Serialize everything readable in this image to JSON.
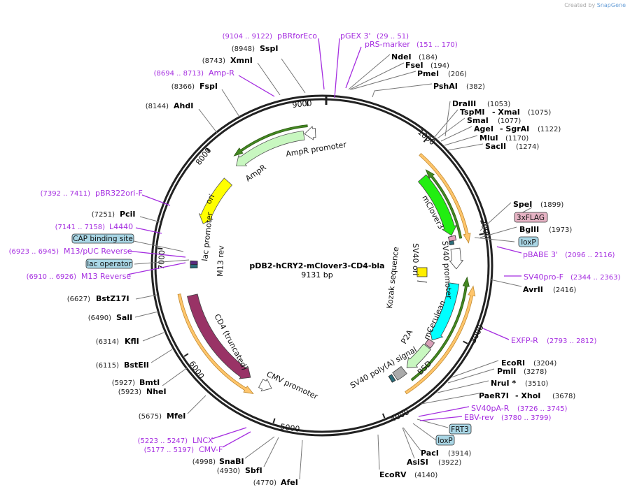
{
  "credit": {
    "prefix": "Created by",
    "brand": "SnapGene"
  },
  "plasmid": {
    "name": "pDB2-hCRY2-mClover3-CD4-bla",
    "size": "9131 bp",
    "length_bp": 9131
  },
  "ticks": [
    "1000",
    "2000",
    "3000",
    "4000",
    "5000",
    "6000",
    "7000",
    "8000",
    "9000"
  ],
  "enzymes": [
    {
      "name": "SspI",
      "pos": "(8948)"
    },
    {
      "name": "XmnI",
      "pos": "(8743)"
    },
    {
      "name": "FspI",
      "pos": "(8366)"
    },
    {
      "name": "AhdI",
      "pos": "(8144)"
    },
    {
      "name": "PciI",
      "pos": "(7251)"
    },
    {
      "name": "BstZ17I",
      "pos": "(6627)"
    },
    {
      "name": "SalI",
      "pos": "(6490)"
    },
    {
      "name": "KflI",
      "pos": "(6314)"
    },
    {
      "name": "BstEII",
      "pos": "(6115)"
    },
    {
      "name": "BmtI",
      "pos": "(5927)"
    },
    {
      "name": "NheI",
      "pos": "(5923)"
    },
    {
      "name": "MfeI",
      "pos": "(5675)"
    },
    {
      "name": "SnaBI",
      "pos": "(4998)"
    },
    {
      "name": "SbfI",
      "pos": "(4930)"
    },
    {
      "name": "AfeI",
      "pos": "(4770)"
    },
    {
      "name": "EcoRV",
      "pos": "(4140)"
    },
    {
      "name": "AsiSI",
      "pos": "(3922)"
    },
    {
      "name": "PacI",
      "pos": "(3914)"
    },
    {
      "name": "PaeR7I",
      "name2": "- XhoI",
      "pos": "(3678)"
    },
    {
      "name": "NruI *",
      "pos": "(3510)"
    },
    {
      "name": "PmlI",
      "pos": "(3278)"
    },
    {
      "name": "EcoRI",
      "pos": "(3204)"
    },
    {
      "name": "AvrII",
      "pos": "(2416)"
    },
    {
      "name": "BglII",
      "pos": "(1973)"
    },
    {
      "name": "SpeI",
      "pos": "(1899)"
    },
    {
      "name": "SacII",
      "pos": "(1274)"
    },
    {
      "name": "MluI",
      "pos": "(1170)"
    },
    {
      "name": "AgeI",
      "name2": "- SgrAI",
      "pos": "(1122)"
    },
    {
      "name": "SmaI",
      "pos": "(1077)"
    },
    {
      "name": "TspMI",
      "name2": "- XmaI",
      "pos": "(1075)"
    },
    {
      "name": "DraIII",
      "pos": "(1053)"
    },
    {
      "name": "PshAI",
      "pos": "(382)"
    },
    {
      "name": "PmeI",
      "pos": "(206)"
    },
    {
      "name": "FseI",
      "pos": "(194)"
    },
    {
      "name": "NdeI",
      "pos": "(184)"
    }
  ],
  "primers": [
    {
      "name": "pBRforEco",
      "range": "(9104 .. 9122)"
    },
    {
      "name": "Amp-R",
      "range": "(8694 .. 8713)"
    },
    {
      "name": "pBR322ori-F",
      "range": "(7392 .. 7411)"
    },
    {
      "name": "L4440",
      "range": "(7141 .. 7158)"
    },
    {
      "name": "M13/pUC Reverse",
      "range": "(6923 .. 6945)"
    },
    {
      "name": "M13 Reverse",
      "range": "(6910 .. 6926)"
    },
    {
      "name": "LNCX",
      "range": "(5223 .. 5247)"
    },
    {
      "name": "CMV-F",
      "range": "(5177 .. 5197)"
    },
    {
      "name": "EBV-rev",
      "range": "(3780 .. 3799)"
    },
    {
      "name": "SV40pA-R",
      "range": "(3726 .. 3745)"
    },
    {
      "name": "EXFP-R",
      "range": "(2793 .. 2812)"
    },
    {
      "name": "SV40pro-F",
      "range": "(2344 .. 2363)"
    },
    {
      "name": "pBABE 3'",
      "range": "(2096 .. 2116)"
    },
    {
      "name": "pRS-marker",
      "range": "(151 .. 170)"
    },
    {
      "name": "pGEX 3'",
      "range": "(29 .. 51)"
    }
  ],
  "boxed_features": [
    "CAP binding site",
    "lac operator",
    "3xFLAG",
    "loxP",
    "loxP",
    "FRT3"
  ],
  "features": [
    "AmpR promoter",
    "AmpR",
    "ori",
    "lac promoter",
    "M13 rev",
    "CD4 (truncated)",
    "CMV promoter",
    "mClover3",
    "SV40 promoter",
    "SV40 ori",
    "Kozak sequence",
    "mCerulean",
    "P2A",
    "BSD",
    "SV40 poly(A) signal"
  ],
  "colors": {
    "primer": "#a52ee0",
    "backbone": "#222222",
    "ampr": "#c8f7c0",
    "ori": "#ffff00",
    "cd4": "#993366",
    "mclover": "#22ee11",
    "mcerulean": "#00ffff",
    "orf": "#ffc56b",
    "dark_green": "#448822"
  }
}
